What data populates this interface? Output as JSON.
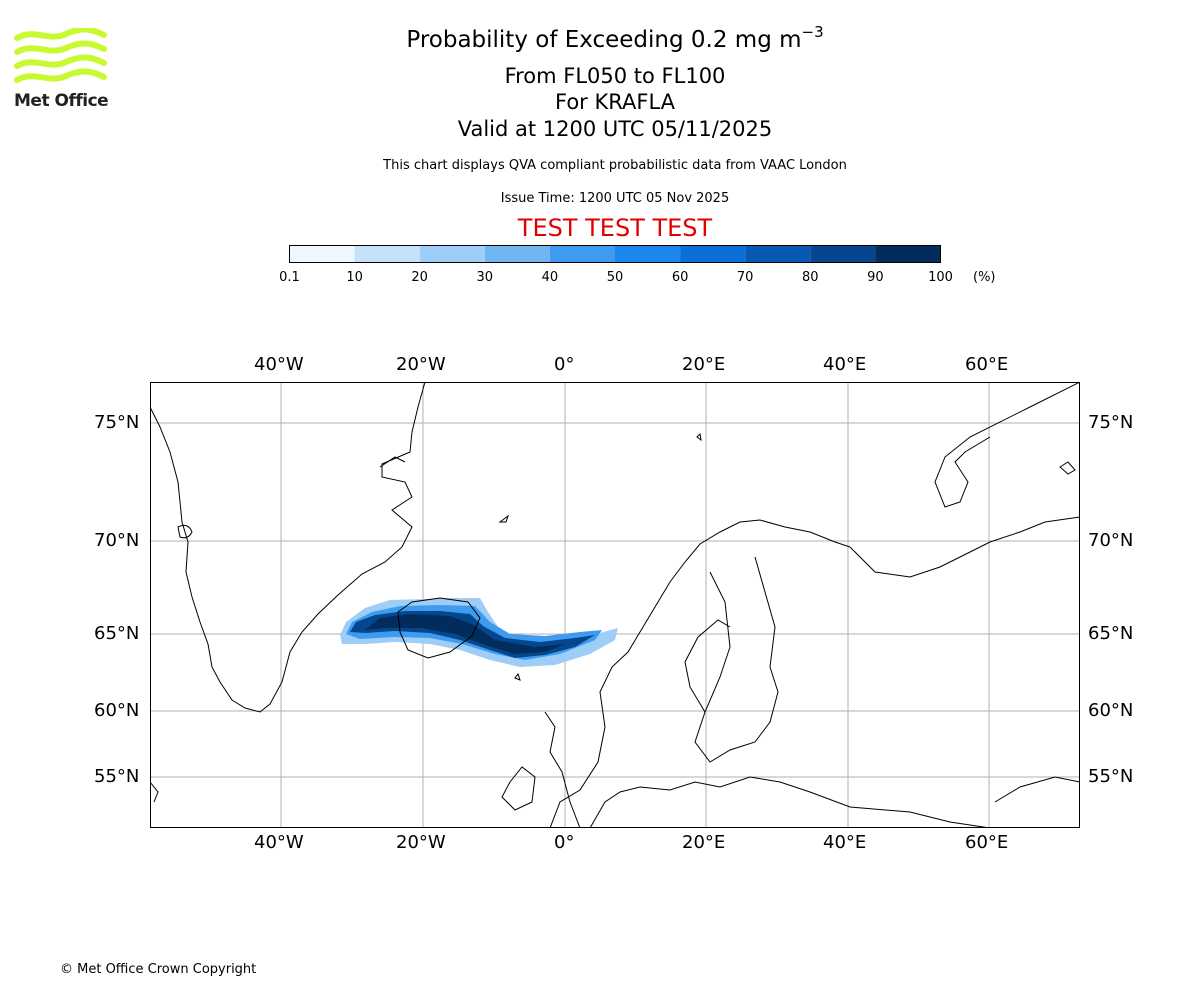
{
  "logo": {
    "text": "Met Office",
    "color": "#c8fa32"
  },
  "title": {
    "main": "Probability of Exceeding 0.2 mg m",
    "main_sup": "−3",
    "levels": "From FL050 to FL100",
    "volcano": "For KRAFLA",
    "valid": "Valid at 1200 UTC 05/11/2025"
  },
  "subtitle": "This chart displays QVA compliant probabilistic data from VAAC London",
  "issue_time": "Issue Time: 1200 UTC 05 Nov 2025",
  "test_banner": {
    "text": "TEST TEST TEST",
    "color": "#e00000"
  },
  "colorbar": {
    "ticks": [
      "0.1",
      "10",
      "20",
      "30",
      "40",
      "50",
      "60",
      "70",
      "80",
      "90",
      "100"
    ],
    "unit": "(%)",
    "colors": [
      "#f0f8ff",
      "#c6e2fb",
      "#9ecdf7",
      "#6fb6f3",
      "#3f9bef",
      "#1b86ec",
      "#0a6fd6",
      "#0659b3",
      "#04478f",
      "#022c5c"
    ]
  },
  "map": {
    "lon_labels": [
      "40°W",
      "20°W",
      "0°",
      "20°E",
      "40°E",
      "60°E"
    ],
    "lat_labels": [
      "75°N",
      "70°N",
      "65°N",
      "60°N",
      "55°N"
    ]
  },
  "copyright": "© Met Office Crown Copyright"
}
